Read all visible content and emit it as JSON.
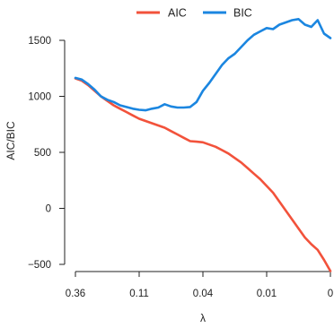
{
  "chart_data": {
    "type": "line",
    "xlabel": "λ",
    "ylabel": "AIC/BIC",
    "x_ticks": [
      {
        "pos": 0,
        "label": "0.36"
      },
      {
        "pos": 0.25,
        "label": "0.11"
      },
      {
        "pos": 0.5,
        "label": "0.04"
      },
      {
        "pos": 0.75,
        "label": "0.01"
      },
      {
        "pos": 1,
        "label": "0"
      }
    ],
    "y_ticks": [
      -500,
      0,
      500,
      1000,
      1500
    ],
    "xlim": [
      0,
      1
    ],
    "ylim": [
      -500,
      1500
    ],
    "grid": false,
    "legend_position": "top",
    "series": [
      {
        "name": "AIC",
        "color": "#F2523B",
        "x": [
          0,
          0.025,
          0.05,
          0.075,
          0.1,
          0.125,
          0.15,
          0.175,
          0.2,
          0.225,
          0.25,
          0.275,
          0.3,
          0.325,
          0.35,
          0.375,
          0.4,
          0.425,
          0.45,
          0.475,
          0.5,
          0.525,
          0.55,
          0.575,
          0.6,
          0.625,
          0.65,
          0.675,
          0.7,
          0.725,
          0.75,
          0.775,
          0.8,
          0.825,
          0.85,
          0.875,
          0.9,
          0.925,
          0.95,
          0.975,
          1
        ],
        "values": [
          1160,
          1140,
          1100,
          1050,
          1000,
          960,
          920,
          890,
          860,
          830,
          800,
          780,
          760,
          740,
          720,
          690,
          660,
          630,
          600,
          595,
          590,
          570,
          550,
          520,
          490,
          450,
          410,
          360,
          310,
          260,
          200,
          140,
          60,
          -20,
          -100,
          -180,
          -260,
          -320,
          -370,
          -460,
          -560
        ]
      },
      {
        "name": "BIC",
        "color": "#1B86E0",
        "x": [
          0,
          0.025,
          0.05,
          0.075,
          0.1,
          0.125,
          0.15,
          0.175,
          0.2,
          0.225,
          0.25,
          0.275,
          0.3,
          0.325,
          0.35,
          0.375,
          0.4,
          0.425,
          0.45,
          0.475,
          0.5,
          0.525,
          0.55,
          0.575,
          0.6,
          0.625,
          0.65,
          0.675,
          0.7,
          0.725,
          0.75,
          0.775,
          0.8,
          0.825,
          0.85,
          0.875,
          0.9,
          0.925,
          0.95,
          0.975,
          1
        ],
        "values": [
          1165,
          1150,
          1110,
          1060,
          1000,
          970,
          950,
          920,
          905,
          890,
          880,
          875,
          890,
          900,
          930,
          910,
          900,
          900,
          905,
          950,
          1050,
          1120,
          1200,
          1280,
          1340,
          1380,
          1440,
          1500,
          1550,
          1580,
          1610,
          1600,
          1640,
          1660,
          1680,
          1690,
          1640,
          1620,
          1680,
          1560,
          1520
        ]
      }
    ]
  }
}
